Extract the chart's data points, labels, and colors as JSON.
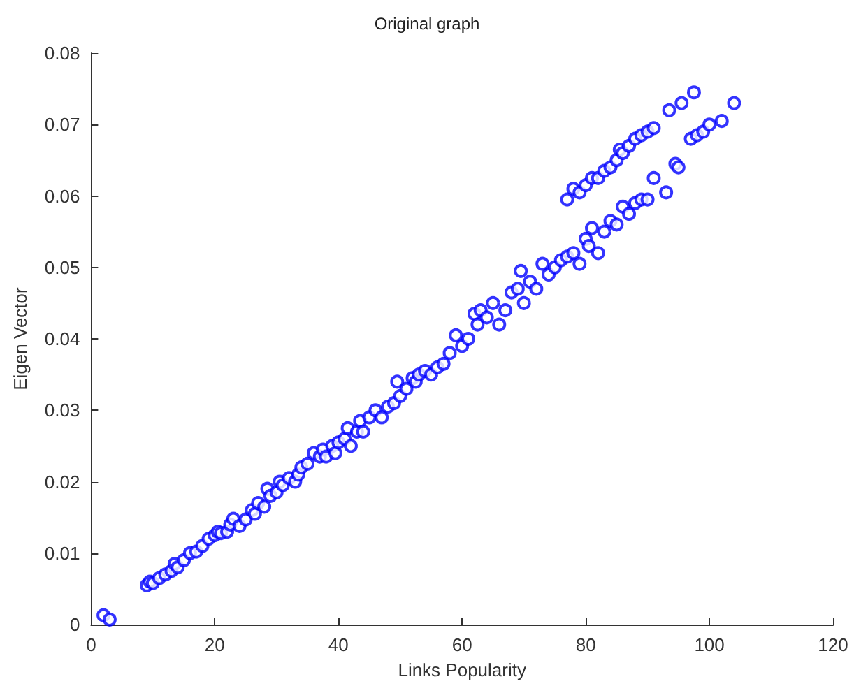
{
  "chart_data": {
    "type": "scatter",
    "title": "Original graph",
    "xlabel": "Links Popularity",
    "ylabel": "Eigen Vector",
    "marker": "circle",
    "grid": false,
    "xlim": [
      0,
      120
    ],
    "xticks": [
      0,
      20,
      40,
      60,
      80,
      100,
      120
    ],
    "ylim": [
      0,
      0.08
    ],
    "yticks": [
      0,
      0.01,
      0.02,
      0.03,
      0.04,
      0.05,
      0.06,
      0.07,
      0.08
    ],
    "series": [
      {
        "color": "#0000ff",
        "x": [
          2,
          3,
          9,
          9.5,
          10,
          11,
          12,
          13,
          13.5,
          14,
          15,
          16,
          17,
          18,
          19,
          20,
          20.5,
          21,
          22,
          22.5,
          23,
          24,
          25,
          26,
          26.5,
          27,
          28,
          28.5,
          29,
          30,
          30.5,
          31,
          32,
          33,
          33.5,
          34,
          35,
          36,
          37,
          37.5,
          38,
          39,
          39.5,
          40,
          41,
          41.5,
          42,
          43,
          43.5,
          44,
          45,
          46,
          47,
          48,
          49,
          49.5,
          50,
          51,
          52,
          52.5,
          53,
          54,
          55,
          56,
          57,
          58,
          59,
          60,
          61,
          62,
          62.5,
          63,
          64,
          65,
          66,
          67,
          68,
          69,
          69.5,
          70,
          71,
          72,
          73,
          74,
          75,
          76,
          77,
          78,
          79,
          80,
          80.5,
          81,
          82,
          83,
          84,
          85,
          86,
          87,
          88,
          89,
          77,
          78,
          79,
          80,
          81,
          82,
          83,
          84,
          85,
          85.5,
          86,
          87,
          88,
          89,
          90,
          91,
          90,
          91,
          93,
          93.5,
          94.5,
          95,
          95.5,
          97,
          97.5,
          98,
          99,
          100,
          102,
          104
        ],
        "values": [
          0.0013,
          0.0007,
          0.0055,
          0.006,
          0.0058,
          0.0065,
          0.007,
          0.0075,
          0.0085,
          0.008,
          0.009,
          0.01,
          0.0102,
          0.011,
          0.012,
          0.0125,
          0.013,
          0.0128,
          0.013,
          0.014,
          0.0148,
          0.0138,
          0.0147,
          0.016,
          0.0155,
          0.017,
          0.0165,
          0.019,
          0.018,
          0.0185,
          0.02,
          0.0195,
          0.0205,
          0.02,
          0.021,
          0.022,
          0.0225,
          0.024,
          0.0235,
          0.0245,
          0.0235,
          0.025,
          0.024,
          0.0255,
          0.026,
          0.0275,
          0.025,
          0.027,
          0.0285,
          0.027,
          0.029,
          0.03,
          0.029,
          0.0305,
          0.031,
          0.034,
          0.032,
          0.033,
          0.0345,
          0.034,
          0.035,
          0.0355,
          0.035,
          0.036,
          0.0365,
          0.038,
          0.0405,
          0.039,
          0.04,
          0.0435,
          0.042,
          0.044,
          0.043,
          0.045,
          0.042,
          0.044,
          0.0465,
          0.047,
          0.0495,
          0.045,
          0.048,
          0.047,
          0.0505,
          0.049,
          0.05,
          0.051,
          0.0515,
          0.052,
          0.0505,
          0.054,
          0.053,
          0.0555,
          0.052,
          0.055,
          0.0565,
          0.056,
          0.0585,
          0.0575,
          0.059,
          0.0595,
          0.0595,
          0.061,
          0.0605,
          0.0615,
          0.0625,
          0.0625,
          0.0635,
          0.064,
          0.065,
          0.0665,
          0.066,
          0.067,
          0.068,
          0.0685,
          0.069,
          0.0695,
          0.0595,
          0.0625,
          0.0605,
          0.072,
          0.0645,
          0.064,
          0.073,
          0.068,
          0.0745,
          0.0685,
          0.069,
          0.07,
          0.0705,
          0.073
        ]
      }
    ]
  }
}
